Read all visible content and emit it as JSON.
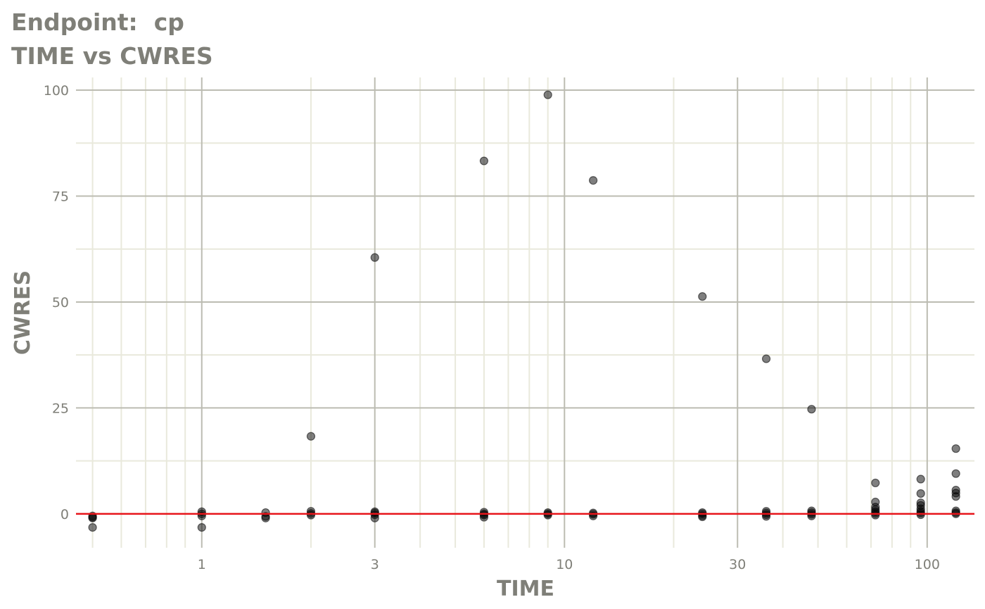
{
  "chart_data": {
    "type": "scatter",
    "title": "Endpoint:  cp",
    "subtitle": "TIME vs CWRES",
    "xlabel": "TIME",
    "ylabel": "CWRES",
    "x_scale": "log10",
    "xlim": [
      0.45,
      135
    ],
    "ylim": [
      -8,
      103
    ],
    "x_ticks": [
      1,
      3,
      10,
      30,
      100
    ],
    "x_tick_labels": [
      "1",
      "3",
      "10",
      "30",
      "100"
    ],
    "y_ticks": [
      0,
      25,
      50,
      75,
      100
    ],
    "y_tick_labels": [
      "0",
      "25",
      "50",
      "75",
      "100"
    ],
    "grid": true,
    "reference_line": {
      "y": 0,
      "color": "#e8141a"
    },
    "point_color": "#000000",
    "points": [
      {
        "x": 0.5,
        "y": -0.5
      },
      {
        "x": 0.5,
        "y": -0.8
      },
      {
        "x": 0.5,
        "y": -1.0
      },
      {
        "x": 0.5,
        "y": -3.2
      },
      {
        "x": 1,
        "y": 0.5
      },
      {
        "x": 1,
        "y": 0.0
      },
      {
        "x": 1,
        "y": -0.5
      },
      {
        "x": 1,
        "y": -3.2
      },
      {
        "x": 1.5,
        "y": 0.3
      },
      {
        "x": 1.5,
        "y": -0.6
      },
      {
        "x": 1.5,
        "y": -1.0
      },
      {
        "x": 2,
        "y": 18.3
      },
      {
        "x": 2,
        "y": 0.6
      },
      {
        "x": 2,
        "y": 0.1
      },
      {
        "x": 2,
        "y": -0.3
      },
      {
        "x": 3,
        "y": 60.5
      },
      {
        "x": 3,
        "y": 0.5
      },
      {
        "x": 3,
        "y": 0.2
      },
      {
        "x": 3,
        "y": -0.2
      },
      {
        "x": 3,
        "y": -1.0
      },
      {
        "x": 6,
        "y": 83.3
      },
      {
        "x": 6,
        "y": 0.4
      },
      {
        "x": 6,
        "y": 0.0
      },
      {
        "x": 6,
        "y": -0.3
      },
      {
        "x": 6,
        "y": -0.8
      },
      {
        "x": 9,
        "y": 98.9
      },
      {
        "x": 9,
        "y": 0.3
      },
      {
        "x": 9,
        "y": 0.0
      },
      {
        "x": 9,
        "y": -0.3
      },
      {
        "x": 12,
        "y": 78.7
      },
      {
        "x": 12,
        "y": 0.2
      },
      {
        "x": 12,
        "y": -0.1
      },
      {
        "x": 12,
        "y": -0.5
      },
      {
        "x": 24,
        "y": 51.3
      },
      {
        "x": 24,
        "y": 0.3
      },
      {
        "x": 24,
        "y": 0.0
      },
      {
        "x": 24,
        "y": -0.4
      },
      {
        "x": 24,
        "y": -0.7
      },
      {
        "x": 36,
        "y": 36.6
      },
      {
        "x": 36,
        "y": 0.6
      },
      {
        "x": 36,
        "y": 0.2
      },
      {
        "x": 36,
        "y": -0.2
      },
      {
        "x": 36,
        "y": -0.6
      },
      {
        "x": 48,
        "y": 24.7
      },
      {
        "x": 48,
        "y": 0.7
      },
      {
        "x": 48,
        "y": 0.3
      },
      {
        "x": 48,
        "y": -0.1
      },
      {
        "x": 48,
        "y": -0.5
      },
      {
        "x": 72,
        "y": 7.3
      },
      {
        "x": 72,
        "y": 2.8
      },
      {
        "x": 72,
        "y": 1.6
      },
      {
        "x": 72,
        "y": 1.0
      },
      {
        "x": 72,
        "y": 0.5
      },
      {
        "x": 72,
        "y": 0.1
      },
      {
        "x": 72,
        "y": -0.3
      },
      {
        "x": 96,
        "y": 8.2
      },
      {
        "x": 96,
        "y": 4.8
      },
      {
        "x": 96,
        "y": 2.6
      },
      {
        "x": 96,
        "y": 2.0
      },
      {
        "x": 96,
        "y": 1.2
      },
      {
        "x": 96,
        "y": 0.6
      },
      {
        "x": 96,
        "y": 0.2
      },
      {
        "x": 96,
        "y": -0.2
      },
      {
        "x": 120,
        "y": 15.4
      },
      {
        "x": 120,
        "y": 9.5
      },
      {
        "x": 120,
        "y": 5.6
      },
      {
        "x": 120,
        "y": 4.9
      },
      {
        "x": 120,
        "y": 4.1
      },
      {
        "x": 120,
        "y": 0.7
      },
      {
        "x": 120,
        "y": 0.3
      },
      {
        "x": 120,
        "y": 0.0
      }
    ]
  }
}
